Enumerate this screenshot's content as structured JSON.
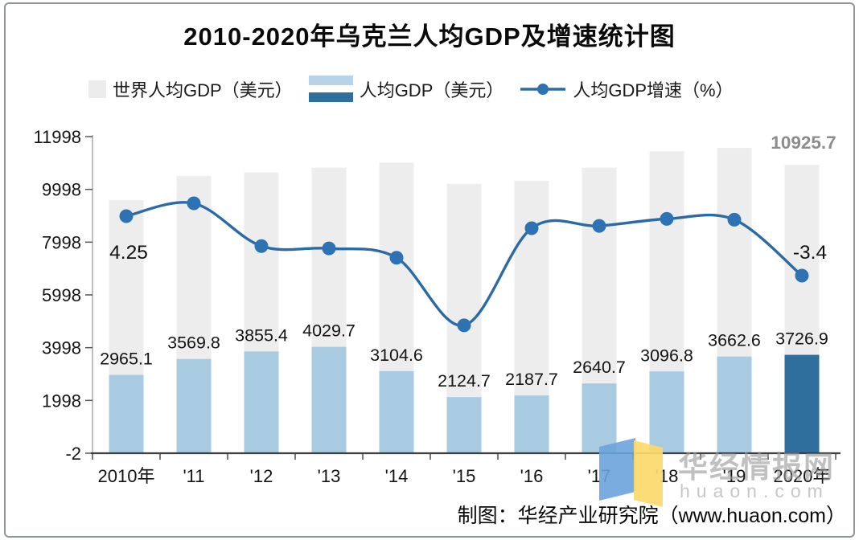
{
  "title": "2010-2020年乌克兰人均GDP及增速统计图",
  "legend": [
    {
      "label": "世界人均GDP（美元）",
      "swatch": "world-bar"
    },
    {
      "label": "人均GDP（美元）",
      "swatch": "gdp-bar"
    },
    {
      "label": "人均GDP增速（%）",
      "swatch": "growth-line"
    }
  ],
  "footer": "制图：华经产业研究院（www.huaon.com）",
  "watermark": {
    "text": "华经情报网",
    "url": "huaon.com"
  },
  "colors": {
    "bar_light": "#a9cbe2",
    "bar_dark": "#2e6f9e",
    "bar_world": "#ededed",
    "line": "#2b6ba5",
    "dot": "#2d73b4",
    "world_label": "#8c8c8c",
    "axis": "#3f3f3f",
    "logo_blue": "#6ba3dc",
    "logo_yellow": "#fbd96a"
  },
  "chart_data": {
    "type": "combo-bar-line",
    "title": "2010-2020年乌克兰人均GDP及增速统计图",
    "categories": [
      "2010年",
      "'11",
      "'12",
      "'13",
      "'14",
      "'15",
      "'16",
      "'17",
      "'18",
      "'19",
      "2020年"
    ],
    "series": [
      {
        "name": "世界人均GDP（美元）",
        "type": "bar",
        "role": "background",
        "values": [
          9590,
          10510,
          10640,
          10820,
          11010,
          10210,
          10330,
          10820,
          11440,
          11570,
          10925.7
        ],
        "labeled_points": {
          "2020年": "10925.7"
        }
      },
      {
        "name": "人均GDP（美元）",
        "type": "bar",
        "highlight_last": true,
        "values": [
          2965.1,
          3569.8,
          3855.4,
          4029.7,
          3104.6,
          2124.7,
          2187.7,
          2640.7,
          3096.8,
          3662.6,
          3726.9
        ]
      },
      {
        "name": "人均GDP增速（%）",
        "type": "line",
        "values": [
          4.25,
          5.9,
          0.4,
          0.1,
          -1.1,
          -9.8,
          2.7,
          3.0,
          3.9,
          3.8,
          -3.4
        ],
        "labeled_points": {
          "2010年": "4.25",
          "2020年": "-3.4"
        }
      }
    ],
    "y_axis": {
      "ticks": [
        11998,
        9998,
        7998,
        5998,
        3998,
        1998,
        -2
      ],
      "range": [
        -2,
        11998
      ]
    },
    "secondary_axis_visible": false,
    "grid": false,
    "legend_position": "top"
  }
}
